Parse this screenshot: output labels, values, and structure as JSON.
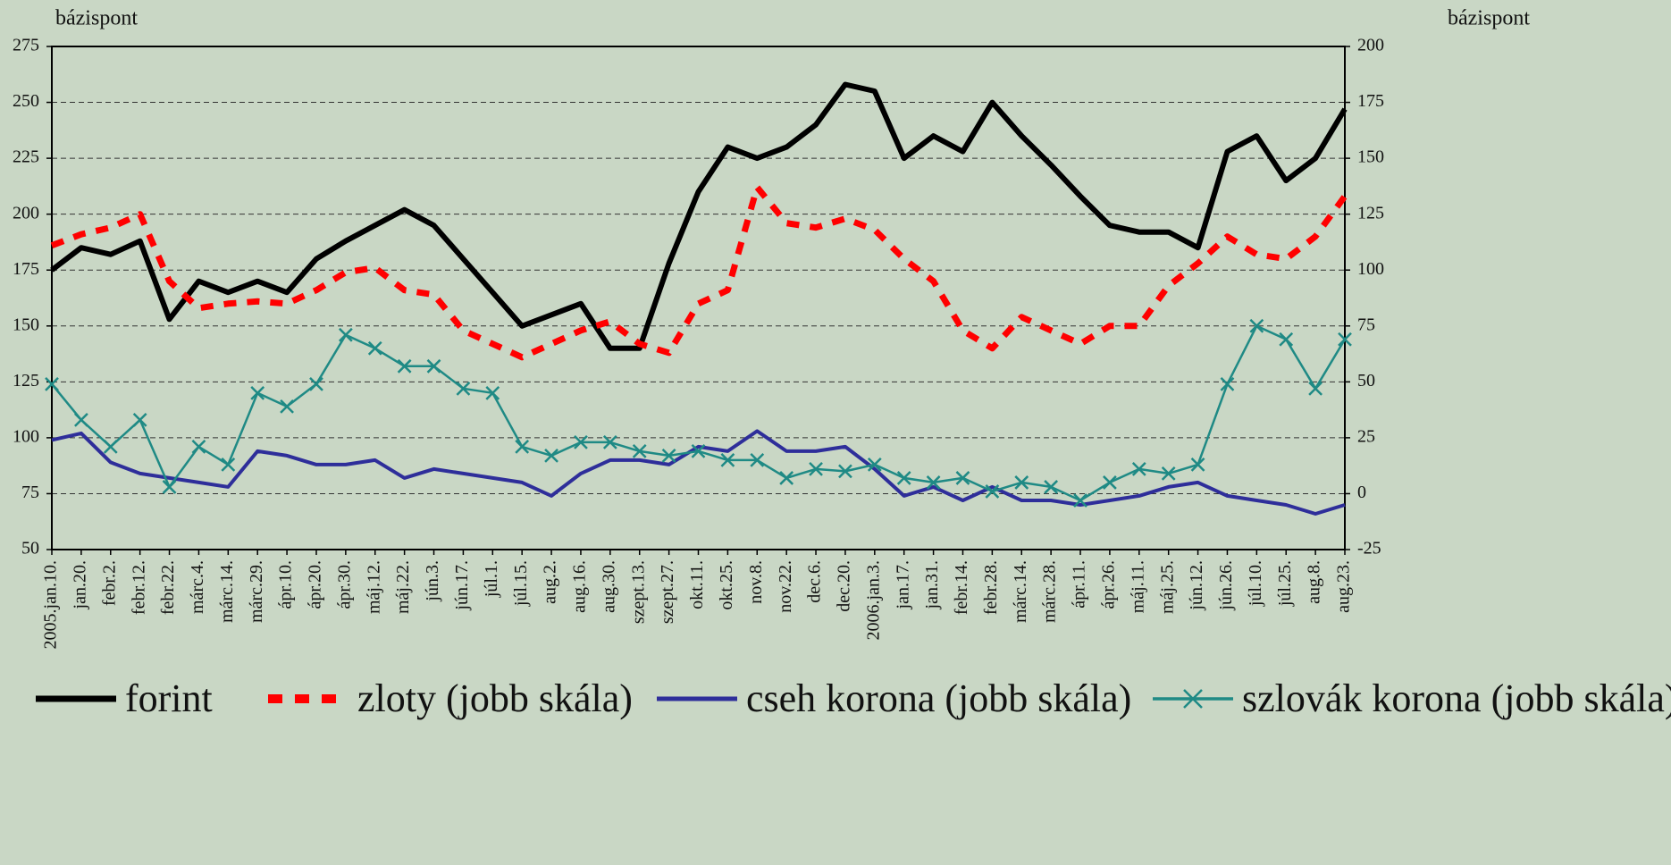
{
  "chart_data": {
    "type": "line",
    "ylabel": "bázispont",
    "y2label": "bázispont",
    "categories": [
      "2005.jan.10.",
      "jan.20.",
      "febr.2.",
      "febr.12.",
      "febr.22.",
      "márc.4.",
      "márc.14.",
      "márc.29.",
      "ápr.10.",
      "ápr.20.",
      "ápr.30.",
      "máj.12.",
      "máj.22.",
      "jún.3.",
      "jún.17.",
      "júl.1.",
      "júl.15.",
      "aug.2.",
      "aug.16.",
      "aug.30.",
      "szept.13.",
      "szept.27.",
      "okt.11.",
      "okt.25.",
      "nov.8.",
      "nov.22.",
      "dec.6.",
      "dec.20.",
      "2006.jan.3.",
      "jan.17.",
      "jan.31.",
      "febr.14.",
      "febr.28.",
      "márc.14.",
      "márc.28.",
      "ápr.11.",
      "ápr.26.",
      "máj.11.",
      "máj.25.",
      "jún.12.",
      "jún.26.",
      "júl.10.",
      "júl.25.",
      "aug.8.",
      "aug.23."
    ],
    "series": [
      {
        "name": "forint",
        "color": "#000000",
        "axis": "y",
        "style": "solid",
        "width": 6,
        "values": [
          175,
          185,
          182,
          188,
          153,
          170,
          165,
          170,
          165,
          180,
          188,
          195,
          202,
          195,
          180,
          165,
          150,
          155,
          160,
          140,
          140,
          178,
          210,
          230,
          225,
          230,
          240,
          258,
          255,
          225,
          235,
          228,
          250,
          235,
          222,
          208,
          195,
          192,
          192,
          185,
          228,
          235,
          215,
          225,
          247
        ]
      },
      {
        "name": "zloty (jobb skála)",
        "color": "#ff0000",
        "axis": "y2",
        "style": "dashed",
        "width": 7,
        "values": [
          111,
          116,
          119,
          125,
          95,
          83,
          85,
          86,
          85,
          91,
          99,
          101,
          91,
          89,
          73,
          67,
          61,
          67,
          73,
          77,
          67,
          63,
          85,
          91,
          137,
          121,
          119,
          123,
          118,
          105,
          95,
          73,
          65,
          79,
          73,
          67,
          75,
          75,
          93,
          103,
          115,
          107,
          105,
          115,
          133
        ]
      },
      {
        "name": "cseh korona (jobb skála)",
        "color": "#2e2e9a",
        "axis": "y2",
        "style": "solid",
        "width": 4,
        "values": [
          24,
          27,
          14,
          9,
          7,
          5,
          3,
          19,
          17,
          13,
          13,
          15,
          7,
          11,
          9,
          7,
          5,
          -1,
          9,
          15,
          15,
          13,
          21,
          19,
          28,
          19,
          19,
          21,
          11,
          -1,
          3,
          -3,
          3,
          -3,
          -3,
          -5,
          -3,
          -1,
          3,
          5,
          -1,
          -3,
          -5,
          -9,
          -5
        ]
      },
      {
        "name": "szlovák korona (jobb skála)",
        "color": "#1f8a85",
        "axis": "y2",
        "style": "solid",
        "width": 2.5,
        "marker": "x",
        "values": [
          49,
          33,
          21,
          33,
          3,
          21,
          13,
          45,
          39,
          49,
          71,
          65,
          57,
          57,
          47,
          45,
          21,
          17,
          23,
          23,
          19,
          17,
          19,
          15,
          15,
          7,
          11,
          10,
          13,
          7,
          5,
          7,
          1,
          5,
          3,
          -3,
          5,
          11,
          9,
          13,
          49,
          75,
          69,
          47,
          69
        ]
      }
    ],
    "ylim": [
      50,
      275
    ],
    "yticks": [
      50,
      75,
      100,
      125,
      150,
      175,
      200,
      225,
      250,
      275
    ],
    "y2lim": [
      -25,
      200
    ],
    "y2ticks": [
      -25,
      0,
      25,
      50,
      75,
      100,
      125,
      150,
      175,
      200
    ],
    "grid": true
  }
}
